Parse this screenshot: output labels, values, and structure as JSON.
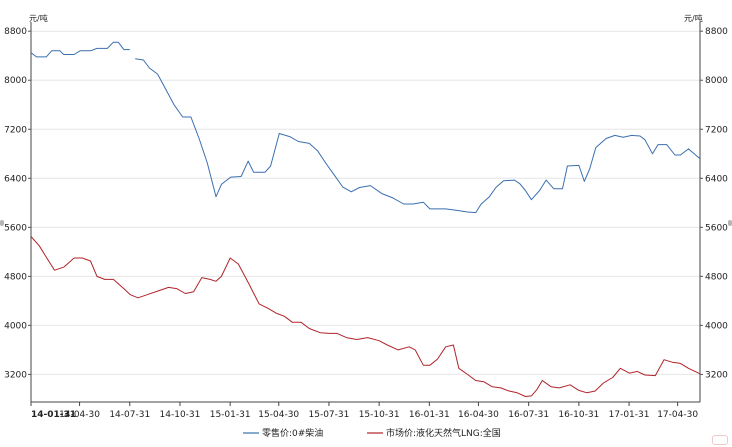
{
  "chart_data": {
    "type": "line",
    "left_axis_unit": "元/吨",
    "right_axis_unit": "元/吨",
    "y_ticks": [
      3200,
      4000,
      4800,
      5600,
      6400,
      7200,
      8000,
      8800
    ],
    "ylim": [
      2750,
      8950
    ],
    "x_ticks": [
      "14-01-31",
      "14-04-30",
      "14-07-31",
      "14-10-31",
      "15-01-31",
      "15-04-30",
      "15-07-31",
      "15-10-31",
      "16-01-31",
      "16-04-30",
      "16-07-31",
      "16-10-31",
      "17-01-31",
      "17-04-30"
    ],
    "x_range": [
      "14-01-31",
      "17-06-10"
    ],
    "grid": "horizontal",
    "legend_position": "bottom",
    "series": [
      {
        "name": "零售价:0#柴油",
        "color": "#3b6fb0",
        "points": [
          [
            "14-01-31",
            8450
          ],
          [
            "14-02-10",
            8380
          ],
          [
            "14-02-28",
            8380
          ],
          [
            "14-03-10",
            8480
          ],
          [
            "14-03-25",
            8480
          ],
          [
            "14-04-01",
            8420
          ],
          [
            "14-04-20",
            8420
          ],
          [
            "14-05-01",
            8480
          ],
          [
            "14-05-20",
            8480
          ],
          [
            "14-06-01",
            8520
          ],
          [
            "14-06-20",
            8520
          ],
          [
            "14-07-01",
            8620
          ],
          [
            "14-07-10",
            8620
          ],
          [
            "14-07-20",
            8500
          ],
          [
            "14-07-31",
            8500
          ],
          null,
          [
            "14-08-10",
            8350
          ],
          [
            "14-08-25",
            8330
          ],
          [
            "14-09-05",
            8200
          ],
          [
            "14-09-20",
            8100
          ],
          [
            "14-10-05",
            7850
          ],
          [
            "14-10-20",
            7600
          ],
          [
            "14-11-05",
            7400
          ],
          [
            "14-11-20",
            7400
          ],
          [
            "14-12-05",
            7050
          ],
          [
            "14-12-20",
            6650
          ],
          [
            "15-01-05",
            6100
          ],
          [
            "15-01-15",
            6300
          ],
          [
            "15-02-01",
            6420
          ],
          [
            "15-02-20",
            6430
          ],
          [
            "15-03-05",
            6680
          ],
          [
            "15-03-15",
            6500
          ],
          [
            "15-04-05",
            6500
          ],
          [
            "15-04-15",
            6600
          ],
          [
            "15-05-01",
            7130
          ],
          [
            "15-05-20",
            7080
          ],
          [
            "15-06-05",
            7000
          ],
          [
            "15-06-25",
            6970
          ],
          [
            "15-07-10",
            6850
          ],
          [
            "15-07-25",
            6650
          ],
          [
            "15-08-10",
            6450
          ],
          [
            "15-08-25",
            6260
          ],
          [
            "15-09-10",
            6180
          ],
          [
            "15-09-25",
            6250
          ],
          [
            "15-10-15",
            6280
          ],
          [
            "15-11-05",
            6150
          ],
          [
            "15-11-25",
            6080
          ],
          [
            "15-12-15",
            5980
          ],
          [
            "16-01-01",
            5980
          ],
          [
            "16-01-20",
            6010
          ],
          [
            "16-02-01",
            5900
          ],
          [
            "16-03-01",
            5900
          ],
          [
            "16-03-20",
            5880
          ],
          [
            "16-04-10",
            5850
          ],
          [
            "16-04-25",
            5840
          ],
          [
            "16-05-05",
            5980
          ],
          [
            "16-05-20",
            6100
          ],
          [
            "16-06-01",
            6250
          ],
          [
            "16-06-15",
            6360
          ],
          [
            "16-07-05",
            6370
          ],
          [
            "16-07-15",
            6310
          ],
          [
            "16-07-25",
            6200
          ],
          [
            "16-08-05",
            6050
          ],
          [
            "16-08-20",
            6200
          ],
          [
            "16-09-01",
            6370
          ],
          [
            "16-09-15",
            6230
          ],
          [
            "16-10-01",
            6230
          ],
          [
            "16-10-10",
            6600
          ],
          [
            "16-10-31",
            6610
          ],
          [
            "16-11-10",
            6350
          ],
          [
            "16-11-20",
            6560
          ],
          [
            "16-12-01",
            6900
          ],
          [
            "16-12-20",
            7050
          ],
          [
            "17-01-05",
            7100
          ],
          [
            "17-01-20",
            7070
          ],
          [
            "17-02-05",
            7100
          ],
          [
            "17-02-20",
            7090
          ],
          [
            "17-03-01",
            7030
          ],
          [
            "17-03-15",
            6800
          ],
          [
            "17-03-25",
            6950
          ],
          [
            "17-04-10",
            6950
          ],
          [
            "17-04-25",
            6780
          ],
          [
            "17-05-05",
            6780
          ],
          [
            "17-05-20",
            6880
          ],
          [
            "17-06-10",
            6720
          ]
        ]
      },
      {
        "name": "市场价:液化天然气LNG:全国",
        "color": "#b0242a",
        "points": [
          [
            "14-01-31",
            5450
          ],
          [
            "14-02-15",
            5300
          ],
          [
            "14-03-01",
            5100
          ],
          [
            "14-03-15",
            4900
          ],
          [
            "14-04-01",
            4950
          ],
          [
            "14-04-20",
            5100
          ],
          [
            "14-05-05",
            5100
          ],
          [
            "14-05-20",
            5050
          ],
          [
            "14-06-01",
            4800
          ],
          [
            "14-06-15",
            4750
          ],
          [
            "14-07-01",
            4750
          ],
          [
            "14-07-20",
            4600
          ],
          [
            "14-08-01",
            4500
          ],
          [
            "14-08-15",
            4450
          ],
          [
            "14-09-01",
            4500
          ],
          [
            "14-09-20",
            4560
          ],
          [
            "14-10-10",
            4620
          ],
          [
            "14-10-25",
            4600
          ],
          [
            "14-11-10",
            4520
          ],
          [
            "14-11-25",
            4550
          ],
          [
            "14-12-10",
            4780
          ],
          [
            "14-12-25",
            4750
          ],
          [
            "15-01-05",
            4720
          ],
          [
            "15-01-15",
            4800
          ],
          [
            "15-01-31",
            5100
          ],
          [
            "15-02-15",
            5000
          ],
          [
            "15-03-05",
            4700
          ],
          [
            "15-03-25",
            4350
          ],
          [
            "15-04-10",
            4280
          ],
          [
            "15-04-25",
            4200
          ],
          [
            "15-05-10",
            4150
          ],
          [
            "15-05-25",
            4050
          ],
          [
            "15-06-10",
            4050
          ],
          [
            "15-06-25",
            3950
          ],
          [
            "15-07-15",
            3880
          ],
          [
            "15-08-01",
            3870
          ],
          [
            "15-08-15",
            3870
          ],
          [
            "15-09-01",
            3800
          ],
          [
            "15-09-20",
            3770
          ],
          [
            "15-10-10",
            3800
          ],
          [
            "15-10-31",
            3750
          ],
          [
            "15-11-15",
            3680
          ],
          [
            "15-12-05",
            3600
          ],
          [
            "15-12-25",
            3650
          ],
          [
            "16-01-05",
            3600
          ],
          [
            "16-01-20",
            3350
          ],
          [
            "16-02-01",
            3350
          ],
          [
            "16-02-15",
            3450
          ],
          [
            "16-03-01",
            3650
          ],
          [
            "16-03-15",
            3680
          ],
          [
            "16-03-25",
            3300
          ],
          [
            "16-04-10",
            3200
          ],
          [
            "16-04-25",
            3100
          ],
          [
            "16-05-10",
            3080
          ],
          [
            "16-05-25",
            3000
          ],
          [
            "16-06-10",
            2980
          ],
          [
            "16-06-25",
            2930
          ],
          [
            "16-07-10",
            2900
          ],
          [
            "16-07-25",
            2840
          ],
          [
            "16-08-05",
            2850
          ],
          [
            "16-08-15",
            2950
          ],
          [
            "16-08-25",
            3100
          ],
          [
            "16-09-10",
            3000
          ],
          [
            "16-09-25",
            2980
          ],
          [
            "16-10-15",
            3030
          ],
          [
            "16-10-31",
            2940
          ],
          [
            "16-11-15",
            2900
          ],
          [
            "16-11-30",
            2930
          ],
          [
            "16-12-15",
            3060
          ],
          [
            "17-01-01",
            3150
          ],
          [
            "17-01-15",
            3300
          ],
          [
            "17-02-01",
            3220
          ],
          [
            "17-02-15",
            3250
          ],
          [
            "17-03-01",
            3190
          ],
          [
            "17-03-20",
            3180
          ],
          [
            "17-04-05",
            3440
          ],
          [
            "17-04-20",
            3400
          ],
          [
            "17-05-05",
            3380
          ],
          [
            "17-05-20",
            3300
          ],
          [
            "17-06-10",
            3210
          ]
        ]
      }
    ]
  }
}
